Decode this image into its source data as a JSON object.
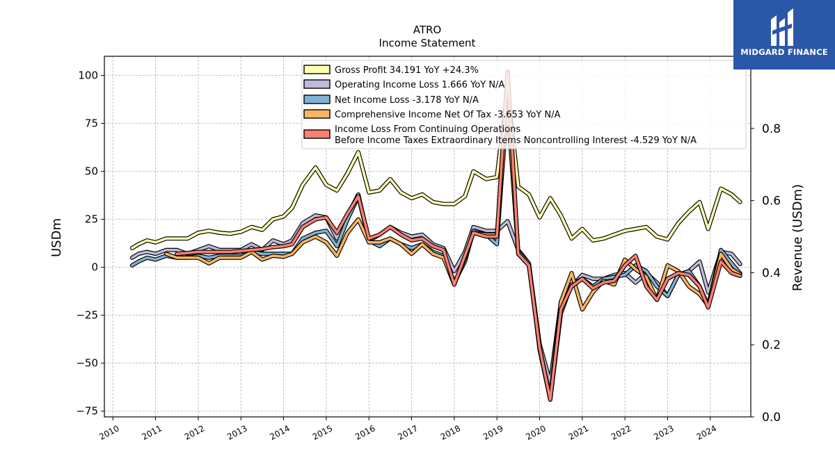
{
  "chart_data": {
    "type": "line",
    "title": "ATRO",
    "subtitle": "Income Statement",
    "ylabel": "USDm",
    "ylabel_right": "Revenue (USDm)",
    "ylim": [
      -78,
      110
    ],
    "ylim_right": [
      0,
      1.0
    ],
    "xlim": [
      2009.8,
      2024.95
    ],
    "yticks": [
      -75,
      -50,
      -25,
      0,
      25,
      50,
      75,
      100
    ],
    "yticks_right": [
      0.0,
      0.2,
      0.4,
      0.6,
      0.8
    ],
    "ytick_labels": [
      "−75",
      "−50",
      "−25",
      "0",
      "25",
      "50",
      "75",
      "100"
    ],
    "ytick_labels_right": [
      "0.0",
      "0.2",
      "0.4",
      "0.6",
      "0.8"
    ],
    "xticks": [
      2010,
      2011,
      2012,
      2013,
      2014,
      2015,
      2016,
      2017,
      2018,
      2019,
      2020,
      2021,
      2022,
      2023,
      2024
    ],
    "xtick_labels": [
      "2010",
      "2011",
      "2012",
      "2013",
      "2014",
      "2015",
      "2016",
      "2017",
      "2018",
      "2019",
      "2020",
      "2021",
      "2022",
      "2023",
      "2024"
    ],
    "grid": true,
    "legend_position": "top-right",
    "series": [
      {
        "name": "Gross Profit",
        "legend_label": "Gross Profit  34.191 YoY +24.3%",
        "color": "#ffffb3",
        "points": [
          [
            2010.45,
            10
          ],
          [
            2010.6,
            12
          ],
          [
            2010.8,
            14
          ],
          [
            2011.0,
            13
          ],
          [
            2011.25,
            15
          ],
          [
            2011.5,
            15
          ],
          [
            2011.75,
            15
          ],
          [
            2012.0,
            18
          ],
          [
            2012.25,
            19
          ],
          [
            2012.5,
            18
          ],
          [
            2012.75,
            17.5
          ],
          [
            2013.0,
            18.5
          ],
          [
            2013.25,
            21
          ],
          [
            2013.5,
            19.5
          ],
          [
            2013.75,
            25
          ],
          [
            2014.0,
            26.5
          ],
          [
            2014.2,
            31
          ],
          [
            2014.45,
            43
          ],
          [
            2014.75,
            52
          ],
          [
            2015.0,
            43
          ],
          [
            2015.25,
            40
          ],
          [
            2015.5,
            49
          ],
          [
            2015.75,
            60
          ],
          [
            2016.0,
            39
          ],
          [
            2016.25,
            40
          ],
          [
            2016.5,
            46
          ],
          [
            2016.75,
            39
          ],
          [
            2017.0,
            36
          ],
          [
            2017.25,
            38
          ],
          [
            2017.5,
            34
          ],
          [
            2017.75,
            33
          ],
          [
            2018.0,
            33
          ],
          [
            2018.25,
            37
          ],
          [
            2018.45,
            50
          ],
          [
            2018.75,
            46
          ],
          [
            2019.0,
            47
          ],
          [
            2019.25,
            93
          ],
          [
            2019.5,
            42
          ],
          [
            2019.75,
            38
          ],
          [
            2020.0,
            26
          ],
          [
            2020.25,
            36
          ],
          [
            2020.5,
            27
          ],
          [
            2020.75,
            15
          ],
          [
            2021.0,
            20
          ],
          [
            2021.25,
            14
          ],
          [
            2021.5,
            15
          ],
          [
            2021.75,
            17
          ],
          [
            2022.0,
            19
          ],
          [
            2022.25,
            20
          ],
          [
            2022.5,
            21
          ],
          [
            2022.75,
            16
          ],
          [
            2023.0,
            14.5
          ],
          [
            2023.25,
            23
          ],
          [
            2023.5,
            29
          ],
          [
            2023.75,
            34
          ],
          [
            2023.95,
            20
          ],
          [
            2024.25,
            41
          ],
          [
            2024.5,
            38
          ],
          [
            2024.7,
            34
          ]
        ]
      },
      {
        "name": "Operating Income Loss",
        "legend_label": "Operating Income Loss  1.666 YoY N/A",
        "color": "#bebada",
        "points": [
          [
            2010.45,
            5
          ],
          [
            2010.6,
            7
          ],
          [
            2010.8,
            8
          ],
          [
            2011.0,
            7
          ],
          [
            2011.25,
            9
          ],
          [
            2011.5,
            9
          ],
          [
            2011.75,
            7
          ],
          [
            2012.0,
            9
          ],
          [
            2012.25,
            11
          ],
          [
            2012.5,
            9
          ],
          [
            2012.75,
            9
          ],
          [
            2013.0,
            9
          ],
          [
            2013.25,
            12
          ],
          [
            2013.5,
            9
          ],
          [
            2013.75,
            14
          ],
          [
            2014.0,
            12
          ],
          [
            2014.2,
            14
          ],
          [
            2014.45,
            23
          ],
          [
            2014.75,
            27
          ],
          [
            2015.0,
            26
          ],
          [
            2015.25,
            15
          ],
          [
            2015.5,
            27
          ],
          [
            2015.75,
            38
          ],
          [
            2016.0,
            14
          ],
          [
            2016.25,
            17
          ],
          [
            2016.5,
            21
          ],
          [
            2016.75,
            18
          ],
          [
            2017.0,
            16
          ],
          [
            2017.25,
            17
          ],
          [
            2017.5,
            12
          ],
          [
            2017.75,
            10
          ],
          [
            2018.0,
            -2
          ],
          [
            2018.25,
            8
          ],
          [
            2018.45,
            21
          ],
          [
            2018.75,
            19
          ],
          [
            2019.0,
            19
          ],
          [
            2019.25,
            24
          ],
          [
            2019.5,
            9
          ],
          [
            2019.75,
            2
          ],
          [
            2020.0,
            -40
          ],
          [
            2020.25,
            -60
          ],
          [
            2020.5,
            -18
          ],
          [
            2020.75,
            -10
          ],
          [
            2021.0,
            -4
          ],
          [
            2021.25,
            -6
          ],
          [
            2021.5,
            -6
          ],
          [
            2021.75,
            -4
          ],
          [
            2022.0,
            -3
          ],
          [
            2022.25,
            -8
          ],
          [
            2022.5,
            -3
          ],
          [
            2022.75,
            -8
          ],
          [
            2023.0,
            -15
          ],
          [
            2023.25,
            -4
          ],
          [
            2023.5,
            -2
          ],
          [
            2023.75,
            3
          ],
          [
            2023.95,
            -13
          ],
          [
            2024.25,
            8
          ],
          [
            2024.5,
            7
          ],
          [
            2024.7,
            1.7
          ]
        ]
      },
      {
        "name": "Net Income Loss",
        "legend_label": "Net Income Loss  -3.178 YoY N/A",
        "color": "#80b1d3",
        "points": [
          [
            2010.45,
            1
          ],
          [
            2010.6,
            3
          ],
          [
            2010.8,
            5
          ],
          [
            2011.0,
            4
          ],
          [
            2011.25,
            6
          ],
          [
            2011.5,
            5
          ],
          [
            2011.75,
            5
          ],
          [
            2012.0,
            6
          ],
          [
            2012.25,
            5
          ],
          [
            2012.5,
            6
          ],
          [
            2012.75,
            6
          ],
          [
            2013.0,
            6
          ],
          [
            2013.25,
            8
          ],
          [
            2013.5,
            7
          ],
          [
            2013.75,
            7
          ],
          [
            2014.0,
            7
          ],
          [
            2014.2,
            7
          ],
          [
            2014.45,
            15
          ],
          [
            2014.75,
            18
          ],
          [
            2015.0,
            19
          ],
          [
            2015.25,
            11
          ],
          [
            2015.5,
            25
          ],
          [
            2015.75,
            37
          ],
          [
            2016.0,
            14
          ],
          [
            2016.25,
            11
          ],
          [
            2016.5,
            15
          ],
          [
            2016.75,
            12
          ],
          [
            2017.0,
            10
          ],
          [
            2017.25,
            12
          ],
          [
            2017.5,
            8
          ],
          [
            2017.75,
            6
          ],
          [
            2018.0,
            -8
          ],
          [
            2018.25,
            3
          ],
          [
            2018.45,
            19
          ],
          [
            2018.75,
            17
          ],
          [
            2019.0,
            12
          ],
          [
            2019.25,
            90
          ],
          [
            2019.5,
            8
          ],
          [
            2019.75,
            2
          ],
          [
            2020.0,
            -43
          ],
          [
            2020.25,
            -69
          ],
          [
            2020.5,
            -24
          ],
          [
            2020.75,
            -9
          ],
          [
            2021.0,
            -6
          ],
          [
            2021.25,
            -10
          ],
          [
            2021.5,
            -6
          ],
          [
            2021.75,
            -5
          ],
          [
            2022.0,
            -4
          ],
          [
            2022.25,
            1
          ],
          [
            2022.5,
            -2
          ],
          [
            2022.75,
            -10
          ],
          [
            2023.0,
            -15
          ],
          [
            2023.25,
            -4
          ],
          [
            2023.5,
            -2
          ],
          [
            2023.75,
            -10
          ],
          [
            2023.95,
            -20
          ],
          [
            2024.25,
            9
          ],
          [
            2024.5,
            2
          ],
          [
            2024.7,
            -3.2
          ]
        ]
      },
      {
        "name": "Comprehensive Income Net Of Tax",
        "legend_label": "Comprehensive Income Net Of Tax  -3.653 YoY N/A",
        "color": "#fdb462",
        "points": [
          [
            2011.25,
            7
          ],
          [
            2011.5,
            5
          ],
          [
            2011.75,
            5
          ],
          [
            2012.0,
            5
          ],
          [
            2012.25,
            2
          ],
          [
            2012.5,
            5
          ],
          [
            2012.75,
            5
          ],
          [
            2013.0,
            5
          ],
          [
            2013.25,
            8
          ],
          [
            2013.5,
            4
          ],
          [
            2013.75,
            6
          ],
          [
            2014.0,
            5.5
          ],
          [
            2014.2,
            7
          ],
          [
            2014.45,
            13
          ],
          [
            2014.75,
            16
          ],
          [
            2015.0,
            13
          ],
          [
            2015.25,
            6
          ],
          [
            2015.5,
            18
          ],
          [
            2015.75,
            25
          ],
          [
            2016.0,
            13
          ],
          [
            2016.25,
            13
          ],
          [
            2016.5,
            15
          ],
          [
            2016.75,
            12
          ],
          [
            2017.0,
            7
          ],
          [
            2017.25,
            12
          ],
          [
            2017.5,
            7
          ],
          [
            2017.75,
            5
          ],
          [
            2018.0,
            -9
          ],
          [
            2018.25,
            5
          ],
          [
            2018.45,
            18
          ],
          [
            2018.75,
            17
          ],
          [
            2019.0,
            17
          ],
          [
            2019.25,
            84
          ],
          [
            2019.5,
            7
          ],
          [
            2019.75,
            1
          ],
          [
            2020.0,
            -42
          ],
          [
            2020.25,
            -68
          ],
          [
            2020.5,
            -18
          ],
          [
            2020.75,
            -3
          ],
          [
            2021.0,
            -22
          ],
          [
            2021.25,
            -13
          ],
          [
            2021.5,
            -7
          ],
          [
            2021.75,
            -9
          ],
          [
            2022.0,
            4
          ],
          [
            2022.25,
            -1
          ],
          [
            2022.5,
            -5
          ],
          [
            2022.75,
            -17
          ],
          [
            2023.0,
            1
          ],
          [
            2023.25,
            -2
          ],
          [
            2023.5,
            -10
          ],
          [
            2023.75,
            -14
          ],
          [
            2023.95,
            -20
          ],
          [
            2024.25,
            7
          ],
          [
            2024.5,
            -1
          ],
          [
            2024.7,
            -3.7
          ]
        ]
      },
      {
        "name": "Income Loss From Continuing Operations Before Income Taxes Extraordinary Items Noncontrolling Interest",
        "legend_label_line1": "Income Loss From Continuing Operations",
        "legend_label_line2": "Before Income Taxes Extraordinary Items Noncontrolling Interest  -4.529 YoY N/A",
        "color": "#fb8072",
        "points": [
          [
            2011.5,
            7
          ],
          [
            2011.75,
            7.5
          ],
          [
            2012.0,
            8
          ],
          [
            2012.25,
            8
          ],
          [
            2012.5,
            8
          ],
          [
            2012.75,
            8
          ],
          [
            2013.0,
            8.5
          ],
          [
            2013.25,
            9
          ],
          [
            2013.5,
            9.5
          ],
          [
            2013.75,
            10.5
          ],
          [
            2014.0,
            11
          ],
          [
            2014.2,
            12
          ],
          [
            2014.45,
            21
          ],
          [
            2014.75,
            25
          ],
          [
            2015.0,
            26
          ],
          [
            2015.25,
            18
          ],
          [
            2015.5,
            28
          ],
          [
            2015.75,
            37
          ],
          [
            2016.0,
            15
          ],
          [
            2016.25,
            17
          ],
          [
            2016.5,
            21
          ],
          [
            2016.75,
            17
          ],
          [
            2017.0,
            14
          ],
          [
            2017.25,
            15
          ],
          [
            2017.5,
            11
          ],
          [
            2017.75,
            9
          ],
          [
            2018.0,
            -9
          ],
          [
            2018.25,
            6
          ],
          [
            2018.45,
            18
          ],
          [
            2018.75,
            16
          ],
          [
            2019.0,
            16
          ],
          [
            2019.25,
            102
          ],
          [
            2019.5,
            7
          ],
          [
            2019.75,
            1
          ],
          [
            2020.0,
            -42
          ],
          [
            2020.25,
            -69
          ],
          [
            2020.5,
            -22
          ],
          [
            2020.75,
            -10
          ],
          [
            2021.0,
            -6
          ],
          [
            2021.25,
            -11
          ],
          [
            2021.5,
            -8
          ],
          [
            2021.75,
            -7
          ],
          [
            2022.0,
            1
          ],
          [
            2022.25,
            6
          ],
          [
            2022.5,
            -10
          ],
          [
            2022.75,
            -17
          ],
          [
            2023.0,
            -6
          ],
          [
            2023.25,
            -3
          ],
          [
            2023.5,
            -4
          ],
          [
            2023.75,
            -10
          ],
          [
            2023.95,
            -21
          ],
          [
            2024.25,
            3
          ],
          [
            2024.5,
            -3
          ],
          [
            2024.7,
            -4.5
          ]
        ]
      }
    ]
  },
  "logo": {
    "text": "MIDGARD FINANCE",
    "background": "#2b57a8"
  }
}
